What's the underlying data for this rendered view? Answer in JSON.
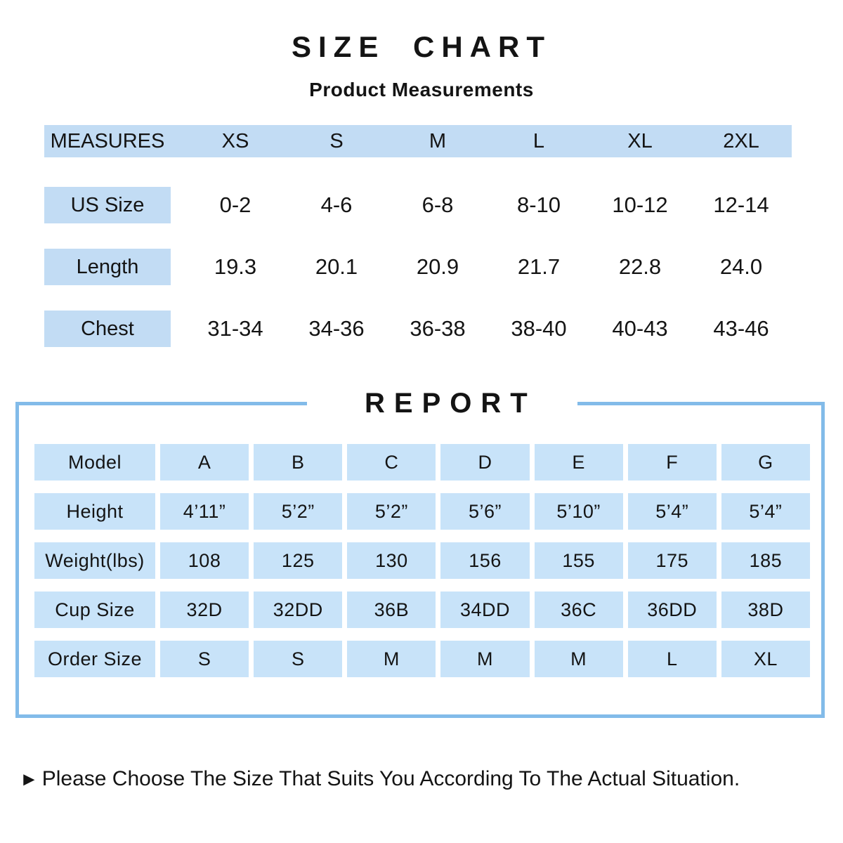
{
  "page": {
    "title": "SIZE CHART",
    "subtitle": "Product Measurements",
    "note_arrow": "►",
    "note": "Please Choose The Size That Suits You According To The Actual Situation."
  },
  "colors": {
    "cell_blue": "#C2DCF4",
    "report_cell_blue": "#C8E3F9",
    "border_blue": "#82BBE9",
    "text": "#141414"
  },
  "measures_table": {
    "header": [
      "MEASURES",
      "XS",
      "S",
      "M",
      "L",
      "XL",
      "2XL"
    ],
    "rows": [
      {
        "label": "US Size",
        "values": [
          "0-2",
          "4-6",
          "6-8",
          "8-10",
          "10-12",
          "12-14"
        ]
      },
      {
        "label": "Length",
        "values": [
          "19.3",
          "20.1",
          "20.9",
          "21.7",
          "22.8",
          "24.0"
        ]
      },
      {
        "label": "Chest",
        "values": [
          "31-34",
          "34-36",
          "36-38",
          "38-40",
          "40-43",
          "43-46"
        ]
      }
    ]
  },
  "report": {
    "title": "REPORT",
    "rows": [
      {
        "label": "Model",
        "values": [
          "A",
          "B",
          "C",
          "D",
          "E",
          "F",
          "G"
        ]
      },
      {
        "label": "Height",
        "values": [
          "4’11”",
          "5’2”",
          "5’2”",
          "5’6”",
          "5’10”",
          "5’4”",
          "5’4”"
        ]
      },
      {
        "label": "Weight(lbs)",
        "values": [
          "108",
          "125",
          "130",
          "156",
          "155",
          "175",
          "185"
        ]
      },
      {
        "label": "Cup Size",
        "values": [
          "32D",
          "32DD",
          "36B",
          "34DD",
          "36C",
          "36DD",
          "38D"
        ]
      },
      {
        "label": "Order Size",
        "values": [
          "S",
          "S",
          "M",
          "M",
          "M",
          "L",
          "XL"
        ]
      }
    ]
  }
}
